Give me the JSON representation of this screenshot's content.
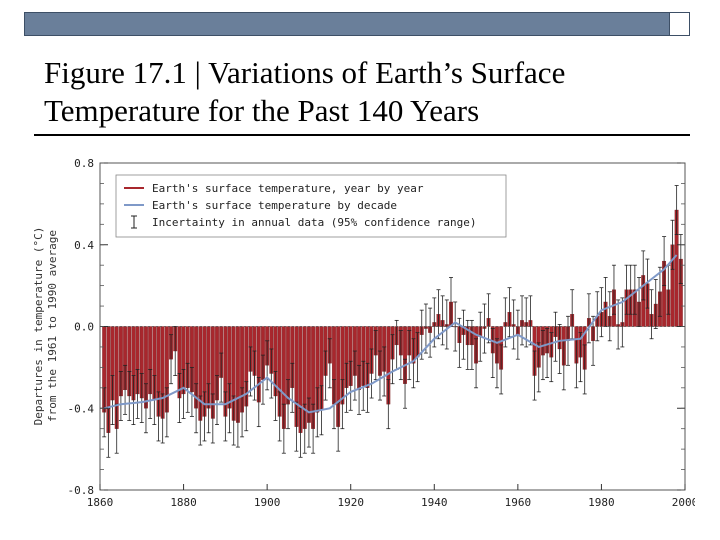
{
  "header": {
    "title_line1": "Figure 17.1 | Variations of Earth’s Surface",
    "title_line2": "Temperature for the Past 140 Years"
  },
  "colors": {
    "bar": "#a8272d",
    "bar_edge": "#6e1416",
    "decade_line": "#7f99c8",
    "error_bar": "#222222",
    "header_bar": "#6a7f9a"
  },
  "chart_data": {
    "type": "bar",
    "ylabel_line1": "Departures in temperature (°C)",
    "ylabel_line2": "from the 1961 to 1990 average",
    "xlim": [
      1860,
      2000
    ],
    "ylim": [
      -0.8,
      0.8
    ],
    "x_ticks": [
      "1860",
      "1880",
      "1900",
      "1920",
      "1940",
      "1960",
      "1980",
      "2000"
    ],
    "y_ticks": [
      "0.8",
      "0.4",
      "0.0",
      "-0.4",
      "-0.8"
    ],
    "grid": false,
    "legend_position": "top-left",
    "legend": [
      "Earth's surface temperature, year by year",
      "Earth's surface temperature by decade",
      "Incertainty in annual data (95% confidence range)"
    ],
    "annual": {
      "years": [
        1861,
        1862,
        1863,
        1864,
        1865,
        1866,
        1867,
        1868,
        1869,
        1870,
        1871,
        1872,
        1873,
        1874,
        1875,
        1876,
        1877,
        1878,
        1879,
        1880,
        1881,
        1882,
        1883,
        1884,
        1885,
        1886,
        1887,
        1888,
        1889,
        1890,
        1891,
        1892,
        1893,
        1894,
        1895,
        1896,
        1897,
        1898,
        1899,
        1900,
        1901,
        1902,
        1903,
        1904,
        1905,
        1906,
        1907,
        1908,
        1909,
        1910,
        1911,
        1912,
        1913,
        1914,
        1915,
        1916,
        1917,
        1918,
        1919,
        1920,
        1921,
        1922,
        1923,
        1924,
        1925,
        1926,
        1927,
        1928,
        1929,
        1930,
        1931,
        1932,
        1933,
        1934,
        1935,
        1936,
        1937,
        1938,
        1939,
        1940,
        1941,
        1942,
        1943,
        1944,
        1945,
        1946,
        1947,
        1948,
        1949,
        1950,
        1951,
        1952,
        1953,
        1954,
        1955,
        1956,
        1957,
        1958,
        1959,
        1960,
        1961,
        1962,
        1963,
        1964,
        1965,
        1966,
        1967,
        1968,
        1969,
        1970,
        1971,
        1972,
        1973,
        1974,
        1975,
        1976,
        1977,
        1978,
        1979,
        1980,
        1981,
        1982,
        1983,
        1984,
        1985,
        1986,
        1987,
        1988,
        1989,
        1990,
        1991,
        1992,
        1993,
        1994,
        1995,
        1996,
        1997,
        1998,
        1999
      ],
      "values": [
        -0.42,
        -0.52,
        -0.36,
        -0.5,
        -0.34,
        -0.31,
        -0.34,
        -0.36,
        -0.33,
        -0.35,
        -0.4,
        -0.33,
        -0.36,
        -0.44,
        -0.45,
        -0.42,
        -0.16,
        -0.12,
        -0.35,
        -0.33,
        -0.3,
        -0.32,
        -0.4,
        -0.46,
        -0.44,
        -0.4,
        -0.45,
        -0.36,
        -0.25,
        -0.44,
        -0.4,
        -0.46,
        -0.47,
        -0.42,
        -0.39,
        -0.22,
        -0.24,
        -0.37,
        -0.26,
        -0.19,
        -0.23,
        -0.34,
        -0.44,
        -0.5,
        -0.38,
        -0.3,
        -0.49,
        -0.52,
        -0.5,
        -0.47,
        -0.5,
        -0.42,
        -0.41,
        -0.24,
        -0.18,
        -0.38,
        -0.49,
        -0.38,
        -0.3,
        -0.29,
        -0.24,
        -0.31,
        -0.29,
        -0.3,
        -0.23,
        -0.14,
        -0.24,
        -0.22,
        -0.38,
        -0.16,
        -0.09,
        -0.14,
        -0.28,
        -0.14,
        -0.18,
        -0.15,
        -0.04,
        -0.01,
        -0.03,
        0.02,
        0.06,
        0.03,
        0.01,
        0.12,
        0.0,
        -0.08,
        -0.04,
        -0.09,
        -0.09,
        -0.18,
        -0.05,
        -0.01,
        0.04,
        -0.13,
        -0.18,
        -0.21,
        0.02,
        0.07,
        0.01,
        -0.04,
        0.03,
        0.02,
        0.03,
        -0.24,
        -0.2,
        -0.14,
        -0.13,
        -0.15,
        -0.05,
        -0.11,
        -0.19,
        -0.07,
        0.06,
        -0.18,
        -0.15,
        -0.21,
        0.04,
        -0.07,
        0.05,
        0.07,
        0.12,
        0.05,
        0.18,
        0.01,
        0.02,
        0.18,
        0.18,
        0.18,
        0.12,
        0.25,
        0.21,
        0.06,
        0.11,
        0.17,
        0.32,
        0.18,
        0.4,
        0.57,
        0.33
      ],
      "uncertainty": 0.12
    },
    "decadal": {
      "x": [
        1861,
        1865,
        1870,
        1875,
        1880,
        1885,
        1890,
        1895,
        1900,
        1905,
        1910,
        1915,
        1920,
        1925,
        1930,
        1935,
        1940,
        1945,
        1950,
        1955,
        1960,
        1965,
        1970,
        1975,
        1980,
        1985,
        1990,
        1995,
        1998
      ],
      "values": [
        -0.4,
        -0.38,
        -0.37,
        -0.35,
        -0.3,
        -0.38,
        -0.38,
        -0.33,
        -0.25,
        -0.35,
        -0.42,
        -0.4,
        -0.32,
        -0.28,
        -0.22,
        -0.17,
        -0.06,
        0.02,
        -0.04,
        -0.08,
        -0.04,
        -0.1,
        -0.07,
        -0.06,
        0.08,
        0.12,
        0.2,
        0.28,
        0.35
      ]
    }
  }
}
